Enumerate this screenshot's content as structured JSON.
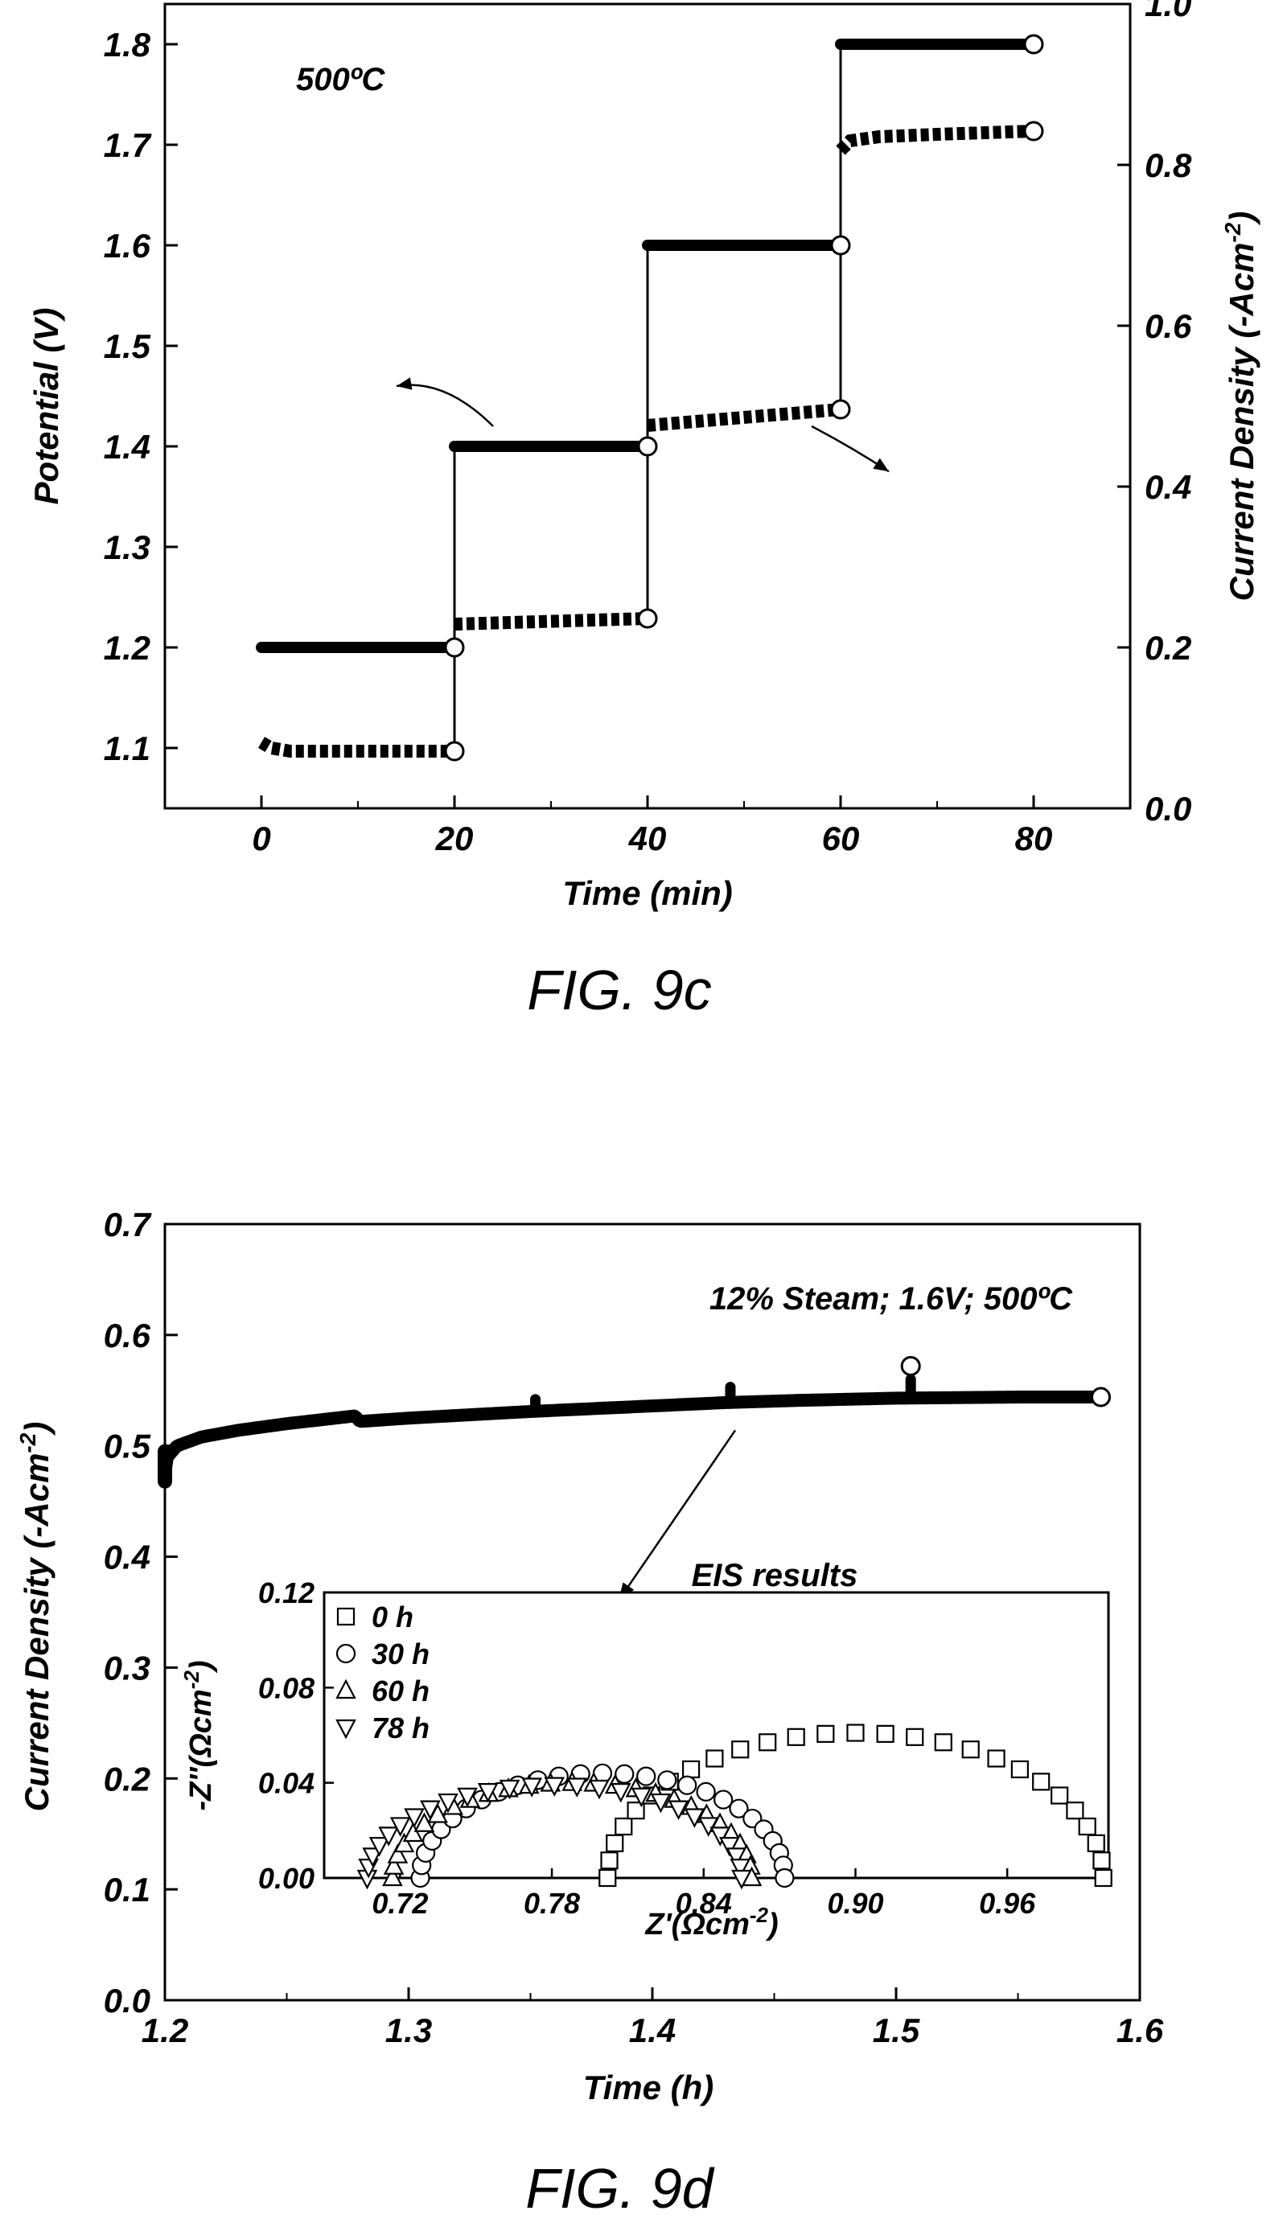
{
  "figures": {
    "c": {
      "caption": "FIG. 9c",
      "annotation": "500ºC",
      "xlabel": "Time (min)",
      "ylabel_left": "Potential (V)",
      "ylabel_right_main": "Current Density (-Acm",
      "ylabel_right_sup": "-2",
      "ylabel_right_end": ")"
    },
    "d": {
      "caption": "FIG. 9d",
      "annotation": "12% Steam; 1.6V; 500ºC",
      "eis_label": "EIS results",
      "xlabel": "Time (h)",
      "ylabel_main": "Current Density (-Acm",
      "ylabel_sup": "-2",
      "ylabel_end": ")",
      "inset_xlabel_main": "Z'(Ωcm",
      "inset_xlabel_sup": "-2",
      "inset_xlabel_end": ")",
      "inset_ylabel_main": "-Z''(Ωcm",
      "inset_ylabel_sup": "-2",
      "inset_ylabel_end": ")"
    }
  },
  "chart_data": [
    {
      "id": "fig9c",
      "type": "line",
      "xlabel": "Time (min)",
      "xlim": [
        -10,
        90
      ],
      "xticks": [
        0,
        20,
        40,
        60,
        80
      ],
      "y_left": {
        "label": "Potential (V)",
        "lim": [
          1.04,
          1.84
        ],
        "ticks": [
          1.1,
          1.2,
          1.3,
          1.4,
          1.5,
          1.6,
          1.7,
          1.8
        ]
      },
      "y_right": {
        "label": "Current Density (-Acm-2)",
        "lim": [
          0.0,
          1.0
        ],
        "ticks": [
          0.0,
          0.2,
          0.4,
          0.6,
          0.8,
          1.0
        ]
      },
      "series": [
        {
          "axis": "left",
          "style": "solid",
          "segments": [
            {
              "x": [
                0,
                20
              ],
              "y": [
                1.2,
                1.2
              ]
            },
            {
              "x": [
                20,
                40
              ],
              "y": [
                1.4,
                1.4
              ]
            },
            {
              "x": [
                40,
                60
              ],
              "y": [
                1.6,
                1.6
              ]
            },
            {
              "x": [
                60,
                80
              ],
              "y": [
                1.8,
                1.8
              ]
            }
          ],
          "endpoints": [
            [
              20,
              1.2
            ],
            [
              40,
              1.4
            ],
            [
              60,
              1.6
            ],
            [
              80,
              1.8
            ]
          ]
        },
        {
          "axis": "right",
          "style": "dashed",
          "segments": [
            {
              "x": [
                0,
                1,
                3,
                20
              ],
              "y": [
                0.082,
                0.075,
                0.071,
                0.071
              ]
            },
            {
              "x": [
                20,
                40
              ],
              "y": [
                0.229,
                0.236
              ]
            },
            {
              "x": [
                40,
                60
              ],
              "y": [
                0.476,
                0.496
              ]
            },
            {
              "x": [
                60,
                61,
                64,
                70,
                80
              ],
              "y": [
                0.818,
                0.83,
                0.835,
                0.838,
                0.842
              ]
            }
          ],
          "endpoints": [
            [
              20,
              0.071
            ],
            [
              40,
              0.236
            ],
            [
              60,
              0.496
            ],
            [
              80,
              0.842
            ]
          ]
        }
      ],
      "arrows": [
        {
          "from": [
            24,
            1.42
          ],
          "to": [
            14,
            1.46
          ],
          "meaning": "left axis"
        },
        {
          "from": [
            57,
            1.42
          ],
          "to": [
            65,
            1.375
          ],
          "meaning": "right axis"
        }
      ]
    },
    {
      "id": "fig9d",
      "type": "line",
      "xlabel": "Time (h)",
      "ylabel": "Current Density (-Acm-2)",
      "xlim": [
        1.2,
        1.6
      ],
      "ylim": [
        0.0,
        0.7
      ],
      "xticks": [
        1.2,
        1.3,
        1.4,
        1.5,
        1.6
      ],
      "yticks": [
        0.0,
        0.1,
        0.2,
        0.3,
        0.4,
        0.5,
        0.6,
        0.7
      ],
      "series": [
        {
          "x": [
            1.2,
            1.201,
            1.205,
            1.215,
            1.23,
            1.25,
            1.278,
            1.28,
            1.3,
            1.35,
            1.4,
            1.43,
            1.46,
            1.5,
            1.55,
            1.584
          ],
          "y": [
            0.475,
            0.49,
            0.5,
            0.508,
            0.514,
            0.52,
            0.527,
            0.522,
            0.525,
            0.531,
            0.536,
            0.539,
            0.541,
            0.543,
            0.544,
            0.544
          ]
        }
      ],
      "spikes": [
        {
          "x": 1.278,
          "y": 0.527
        },
        {
          "x": 1.352,
          "y": 0.542
        },
        {
          "x": 1.432,
          "y": 0.553
        },
        {
          "x": 1.506,
          "y": 0.56
        }
      ],
      "endpoints": [
        [
          1.506,
          0.572
        ],
        [
          1.584,
          0.544
        ]
      ],
      "arrow": {
        "from": [
          1.434,
          0.514
        ],
        "to": [
          1.386,
          0.36
        ]
      },
      "inset": {
        "type": "scatter",
        "xlabel": "Z'(Ωcm-2)",
        "ylabel": "-Z''(Ωcm-2)",
        "xlim": [
          0.69,
          1.0
        ],
        "ylim": [
          0.0,
          0.12
        ],
        "xticks": [
          0.72,
          0.78,
          0.84,
          0.9,
          0.96
        ],
        "yticks": [
          0.0,
          0.04,
          0.08,
          0.12
        ],
        "series": [
          {
            "name": "0 h",
            "marker": "square",
            "arc": {
              "center": 0.9,
              "radius": 0.098,
              "ymax": 0.061
            }
          },
          {
            "name": "30 h",
            "marker": "circle",
            "arc": {
              "center": 0.8,
              "radius": 0.072,
              "ymax": 0.044
            }
          },
          {
            "name": "60 h",
            "marker": "triangle-up",
            "arc": {
              "center": 0.788,
              "radius": 0.071,
              "ymax": 0.04
            }
          },
          {
            "name": "78 h",
            "marker": "triangle-down",
            "arc": {
              "center": 0.781,
              "radius": 0.074,
              "ymax": 0.039
            }
          }
        ]
      }
    }
  ]
}
